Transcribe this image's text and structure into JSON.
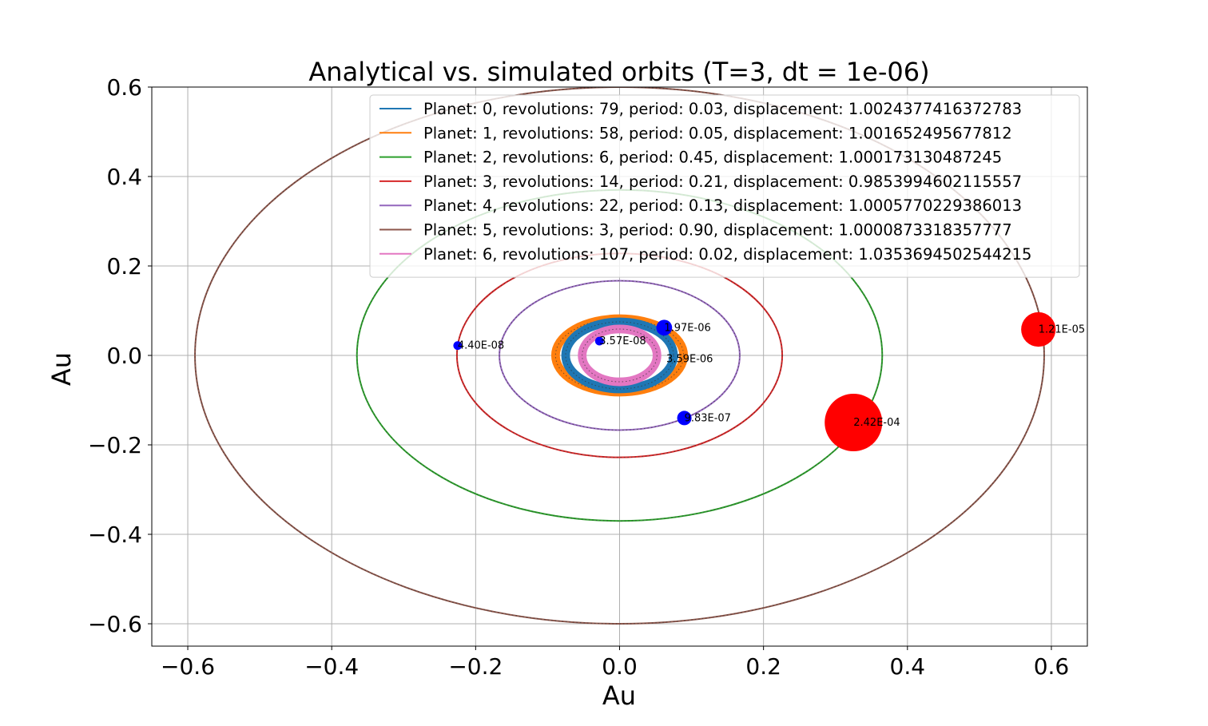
{
  "chart_data": {
    "type": "scatter",
    "title": "Analytical vs. simulated orbits (T=3, dt = 1e-06)",
    "xlabel": "Au",
    "ylabel": "Au",
    "xlim": [
      -0.65,
      0.65
    ],
    "ylim": [
      -0.65,
      0.6
    ],
    "x_ticks": [
      -0.6,
      -0.4,
      -0.2,
      0.0,
      0.2,
      0.4,
      0.6
    ],
    "y_ticks": [
      -0.6,
      -0.4,
      -0.2,
      0.0,
      0.2,
      0.4,
      0.6
    ],
    "x_tick_labels": [
      "−0.6",
      "−0.4",
      "−0.2",
      "0.0",
      "0.2",
      "0.4",
      "0.6"
    ],
    "y_tick_labels": [
      "−0.6",
      "−0.4",
      "−0.2",
      "0.0",
      "0.2",
      "0.4",
      "0.6"
    ],
    "grid": true,
    "legend_position": "top-right",
    "series": [
      {
        "name": "Planet: 0, revolutions: 79, period: 0.03, displacement: 1.0024377416372783",
        "color": "#1f77b4",
        "orbit": {
          "a": 0.075,
          "b": 0.075,
          "band": 0.012
        }
      },
      {
        "name": "Planet: 1, revolutions: 58, period: 0.05, displacement: 1.001652495677812",
        "color": "#ff7f0e",
        "orbit": {
          "a": 0.089,
          "b": 0.082,
          "band": 0.012
        }
      },
      {
        "name": "Planet: 2, revolutions: 6, period: 0.45, displacement: 1.000173130487245",
        "color": "#2ca02c",
        "orbit": {
          "a": 0.365,
          "b": 0.37,
          "band": 0.002
        }
      },
      {
        "name": "Planet: 3, revolutions: 14, period: 0.21, displacement: 0.9853994602115557",
        "color": "#d62728",
        "orbit": {
          "a": 0.226,
          "b": 0.228,
          "band": 0.002
        }
      },
      {
        "name": "Planet: 4, revolutions: 22, period: 0.13, displacement: 1.0005770229386013",
        "color": "#9467bd",
        "orbit": {
          "a": 0.167,
          "b": 0.167,
          "band": 0.002
        }
      },
      {
        "name": "Planet: 5, revolutions: 3, period: 0.90, displacement: 1.0000873318357777",
        "color": "#8c564b",
        "orbit": {
          "a": 0.59,
          "b": 0.6,
          "band": 0.002
        }
      },
      {
        "name": "Planet: 6, revolutions: 107, period: 0.02, displacement: 1.0353694502544215",
        "color": "#e377c2",
        "orbit": {
          "a": 0.052,
          "b": 0.059,
          "band": 0.012
        }
      }
    ],
    "markers": [
      {
        "x": 0.062,
        "y": 0.062,
        "color": "#0000ff",
        "radius": 0.011,
        "label": "1.97E-06"
      },
      {
        "x": -0.028,
        "y": 0.032,
        "color": "#0000ff",
        "radius": 0.006,
        "label": "3.57E-08"
      },
      {
        "x": -0.225,
        "y": 0.022,
        "color": "#0000ff",
        "radius": 0.006,
        "label": "4.40E-08"
      },
      {
        "x": 0.065,
        "y": -0.008,
        "color": "#0000ff",
        "radius": 0.0,
        "label": "3.59E-06"
      },
      {
        "x": 0.09,
        "y": -0.14,
        "color": "#0000ff",
        "radius": 0.01,
        "label": "9.83E-07"
      },
      {
        "x": 0.325,
        "y": -0.15,
        "color": "#ff0000",
        "radius": 0.04,
        "label": "2.42E-04"
      },
      {
        "x": 0.582,
        "y": 0.058,
        "color": "#ff0000",
        "radius": 0.024,
        "label": "1.21E-05"
      }
    ]
  }
}
